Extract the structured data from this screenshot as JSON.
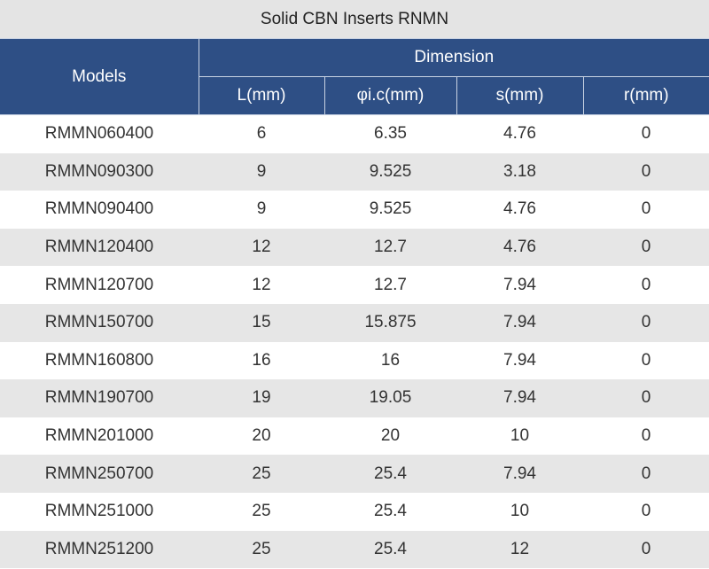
{
  "title": "Solid CBN Inserts RNMN",
  "headers": {
    "models": "Models",
    "dimension": "Dimension",
    "columns": [
      "L(mm)",
      "φi.c(mm)",
      "s(mm)",
      "r(mm)"
    ]
  },
  "rows": [
    [
      "RMMN060400",
      "6",
      "6.35",
      "4.76",
      "0"
    ],
    [
      "RMMN090300",
      "9",
      "9.525",
      "3.18",
      "0"
    ],
    [
      "RMMN090400",
      "9",
      "9.525",
      "4.76",
      "0"
    ],
    [
      "RMMN120400",
      "12",
      "12.7",
      "4.76",
      "0"
    ],
    [
      "RMMN120700",
      "12",
      "12.7",
      "7.94",
      "0"
    ],
    [
      "RMMN150700",
      "15",
      "15.875",
      "7.94",
      "0"
    ],
    [
      "RMMN160800",
      "16",
      "16",
      "7.94",
      "0"
    ],
    [
      "RMMN190700",
      "19",
      "19.05",
      "7.94",
      "0"
    ],
    [
      "RMMN201000",
      "20",
      "20",
      "10",
      "0"
    ],
    [
      "RMMN250700",
      "25",
      "25.4",
      "7.94",
      "0"
    ],
    [
      "RMMN251000",
      "25",
      "25.4",
      "10",
      "0"
    ],
    [
      "RMMN251200",
      "25",
      "25.4",
      "12",
      "0"
    ]
  ],
  "colors": {
    "header_bg": "#2e4f85",
    "title_bg": "#e4e4e4",
    "stripe_bg": "#e6e6e6"
  }
}
